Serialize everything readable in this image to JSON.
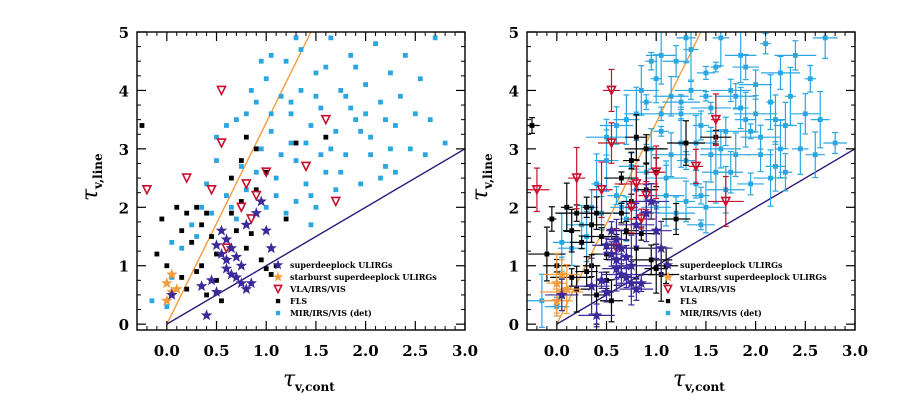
{
  "chart_data": [
    {
      "type": "scatter",
      "panel": "left",
      "xlabel": "τ",
      "xlabel_sub": "v,cont",
      "ylabel": "τ",
      "ylabel_sub": "v,line",
      "xlim": [
        -0.3,
        3.0
      ],
      "ylim": [
        -0.1,
        5.0
      ],
      "xticks": [
        "0.0",
        "0.5",
        "1.0",
        "1.5",
        "2.0",
        "2.5",
        "3.0"
      ],
      "yticks": [
        "0",
        "1",
        "2",
        "3",
        "4",
        "5"
      ],
      "error_bars": false,
      "lines": [
        {
          "name": "steep relation",
          "color": "#f39c3c",
          "points": [
            [
              0.0,
              0.0
            ],
            [
              1.45,
              5.0
            ]
          ]
        },
        {
          "name": "one-to-one",
          "color": "#2a1a7a",
          "points": [
            [
              0.0,
              0.0
            ],
            [
              3.0,
              3.0
            ]
          ]
        }
      ],
      "legend_position": "bottom-right",
      "series": [
        {
          "name": "superdeeplock ULIRGs",
          "marker": "star",
          "color": "#3d2a9a",
          "points": [
            [
              0.05,
              0.5
            ],
            [
              0.4,
              0.15
            ],
            [
              0.35,
              0.65
            ],
            [
              0.45,
              0.75
            ],
            [
              0.55,
              1.2
            ],
            [
              0.6,
              0.95
            ],
            [
              0.65,
              0.85
            ],
            [
              0.7,
              0.8
            ],
            [
              0.75,
              0.7
            ],
            [
              0.8,
              0.6
            ],
            [
              0.85,
              0.7
            ],
            [
              0.5,
              1.35
            ],
            [
              0.55,
              1.6
            ],
            [
              0.6,
              1.45
            ],
            [
              0.65,
              1.3
            ],
            [
              0.7,
              1.15
            ],
            [
              0.75,
              1.0
            ],
            [
              0.8,
              1.7
            ],
            [
              0.9,
              1.9
            ],
            [
              0.95,
              2.1
            ],
            [
              1.0,
              1.6
            ],
            [
              1.05,
              1.3
            ],
            [
              0.5,
              0.55
            ],
            [
              0.6,
              1.1
            ]
          ]
        },
        {
          "name": "starburst superdeeplock ULIRGs",
          "marker": "star",
          "color": "#f39c3c",
          "points": [
            [
              0.0,
              0.7
            ],
            [
              0.05,
              0.55
            ],
            [
              0.0,
              0.4
            ],
            [
              0.05,
              0.85
            ],
            [
              0.1,
              0.6
            ]
          ]
        },
        {
          "name": "VLA/IRS/VIS",
          "marker": "triangle-down",
          "color": "#c8102e",
          "points": [
            [
              -0.2,
              2.3
            ],
            [
              0.2,
              2.5
            ],
            [
              0.55,
              3.1
            ],
            [
              0.8,
              2.4
            ],
            [
              0.9,
              2.2
            ],
            [
              1.0,
              2.6
            ],
            [
              0.55,
              4.0
            ],
            [
              1.6,
              3.5
            ],
            [
              0.45,
              2.3
            ],
            [
              1.4,
              2.7
            ],
            [
              0.75,
              2.0
            ],
            [
              1.7,
              2.1
            ],
            [
              0.6,
              1.3
            ],
            [
              0.85,
              1.8
            ]
          ]
        },
        {
          "name": "FLS",
          "marker": "square",
          "color": "#000000",
          "points": [
            [
              -0.25,
              3.4
            ],
            [
              -0.1,
              1.2
            ],
            [
              0.0,
              1.0
            ],
            [
              -0.05,
              1.8
            ],
            [
              0.1,
              2.0
            ],
            [
              0.15,
              1.6
            ],
            [
              0.2,
              1.9
            ],
            [
              0.25,
              1.4
            ],
            [
              0.3,
              2.0
            ],
            [
              0.35,
              1.7
            ],
            [
              0.4,
              1.9
            ],
            [
              0.45,
              1.5
            ],
            [
              0.5,
              1.2
            ],
            [
              0.5,
              0.75
            ],
            [
              0.55,
              0.4
            ],
            [
              0.6,
              1.1
            ],
            [
              0.65,
              1.9
            ],
            [
              0.7,
              1.6
            ],
            [
              0.75,
              2.1
            ],
            [
              0.8,
              1.3
            ],
            [
              0.85,
              1.55
            ],
            [
              0.9,
              2.3
            ],
            [
              0.95,
              1.1
            ],
            [
              1.0,
              0.95
            ],
            [
              1.05,
              0.85
            ],
            [
              1.1,
              1.0
            ],
            [
              0.15,
              0.8
            ],
            [
              0.3,
              0.9
            ],
            [
              0.2,
              0.6
            ],
            [
              0.4,
              0.5
            ],
            [
              0.75,
              2.8
            ],
            [
              0.8,
              3.2
            ],
            [
              0.9,
              3.0
            ],
            [
              1.0,
              2.6
            ],
            [
              1.3,
              3.1
            ],
            [
              1.6,
              3.2
            ],
            [
              0.65,
              2.5
            ],
            [
              0.35,
              1.0
            ],
            [
              1.2,
              1.8
            ]
          ]
        },
        {
          "name": "MIR/IRS/VIS (det)",
          "marker": "square",
          "color": "#2aa6e0",
          "points": [
            [
              -0.15,
              0.4
            ],
            [
              0.0,
              0.3
            ],
            [
              0.05,
              0.8
            ],
            [
              0.05,
              1.4
            ],
            [
              0.15,
              1.3
            ],
            [
              0.25,
              1.7
            ],
            [
              0.35,
              2.0
            ],
            [
              0.4,
              2.4
            ],
            [
              0.5,
              2.8
            ],
            [
              0.5,
              3.2
            ],
            [
              0.6,
              3.4
            ],
            [
              0.65,
              2.0
            ],
            [
              0.7,
              3.5
            ],
            [
              0.75,
              2.7
            ],
            [
              0.8,
              3.6
            ],
            [
              0.85,
              4.0
            ],
            [
              0.9,
              3.8
            ],
            [
              0.95,
              3.0
            ],
            [
              1.0,
              4.2
            ],
            [
              1.05,
              3.3
            ],
            [
              1.1,
              2.5
            ],
            [
              1.15,
              3.9
            ],
            [
              1.2,
              4.5
            ],
            [
              1.25,
              3.6
            ],
            [
              1.3,
              2.8
            ],
            [
              1.35,
              4.7
            ],
            [
              1.4,
              3.1
            ],
            [
              1.45,
              2.2
            ],
            [
              1.5,
              4.3
            ],
            [
              1.55,
              3.7
            ],
            [
              1.6,
              2.6
            ],
            [
              1.65,
              4.9
            ],
            [
              1.7,
              3.3
            ],
            [
              1.75,
              4.0
            ],
            [
              1.8,
              2.9
            ],
            [
              1.85,
              4.6
            ],
            [
              1.9,
              3.5
            ],
            [
              1.95,
              2.4
            ],
            [
              2.0,
              4.1
            ],
            [
              2.05,
              3.2
            ],
            [
              2.1,
              4.8
            ],
            [
              2.15,
              3.8
            ],
            [
              2.2,
              2.7
            ],
            [
              2.25,
              4.3
            ],
            [
              2.3,
              3.4
            ],
            [
              2.35,
              3.9
            ],
            [
              2.4,
              4.6
            ],
            [
              2.5,
              3.6
            ],
            [
              2.55,
              4.2
            ],
            [
              2.65,
              3.5
            ],
            [
              2.7,
              4.9
            ],
            [
              2.8,
              3.1
            ],
            [
              1.1,
              2.2
            ],
            [
              1.2,
              1.9
            ],
            [
              1.3,
              2.1
            ],
            [
              1.4,
              2.4
            ],
            [
              1.5,
              2.0
            ],
            [
              1.0,
              2.0
            ],
            [
              0.9,
              2.6
            ],
            [
              1.15,
              2.9
            ],
            [
              1.25,
              3.1
            ],
            [
              1.45,
              3.4
            ],
            [
              1.55,
              2.9
            ],
            [
              1.65,
              3.0
            ],
            [
              1.75,
              2.6
            ],
            [
              1.85,
              3.7
            ],
            [
              1.95,
              3.3
            ],
            [
              2.05,
              2.9
            ],
            [
              2.15,
              2.5
            ],
            [
              2.25,
              3.0
            ],
            [
              2.45,
              3.0
            ],
            [
              1.05,
              4.6
            ],
            [
              1.35,
              4.0
            ],
            [
              1.6,
              4.4
            ],
            [
              1.9,
              4.4
            ],
            [
              2.0,
              3.6
            ],
            [
              0.8,
              2.3
            ],
            [
              0.7,
              1.8
            ],
            [
              0.6,
              2.2
            ],
            [
              1.45,
              1.7
            ],
            [
              1.7,
              2.3
            ],
            [
              2.3,
              2.6
            ],
            [
              0.3,
              1.5
            ],
            [
              0.45,
              1.9
            ],
            [
              1.25,
              3.8
            ],
            [
              1.05,
              3.6
            ],
            [
              1.5,
              3.9
            ],
            [
              1.8,
              3.9
            ],
            [
              2.2,
              3.5
            ],
            [
              2.6,
              2.9
            ],
            [
              0.95,
              4.5
            ],
            [
              1.3,
              4.9
            ]
          ]
        }
      ]
    },
    {
      "type": "scatter",
      "panel": "right",
      "xlabel": "τ",
      "xlabel_sub": "v,cont",
      "ylabel": "τ",
      "ylabel_sub": "v,line",
      "xlim": [
        -0.3,
        3.0
      ],
      "ylim": [
        -0.1,
        5.0
      ],
      "xticks": [
        "0.0",
        "0.5",
        "1.0",
        "1.5",
        "2.0",
        "2.5",
        "3.0"
      ],
      "yticks": [
        "0",
        "1",
        "2",
        "3",
        "4",
        "5"
      ],
      "error_bars": true,
      "lines": [
        {
          "name": "steep relation",
          "color": "#f39c3c",
          "points": [
            [
              0.0,
              0.0
            ],
            [
              1.45,
              5.0
            ]
          ]
        },
        {
          "name": "one-to-one",
          "color": "#2a1a7a",
          "points": [
            [
              0.0,
              0.0
            ],
            [
              3.0,
              3.0
            ]
          ]
        }
      ],
      "legend_position": "bottom-right",
      "series_same_as": "left"
    }
  ],
  "legend": [
    {
      "label": "superdeeplock ULIRGs",
      "marker": "star",
      "color": "#3d2a9a"
    },
    {
      "label": "starburst superdeeplock ULIRGs",
      "marker": "star",
      "color": "#f39c3c"
    },
    {
      "label": "VLA/IRS/VIS",
      "marker": "triangle-down",
      "color": "#c8102e"
    },
    {
      "label": "FLS",
      "marker": "square",
      "color": "#000000"
    },
    {
      "label": "MIR/IRS/VIS (det)",
      "marker": "square",
      "color": "#2aa6e0"
    }
  ]
}
